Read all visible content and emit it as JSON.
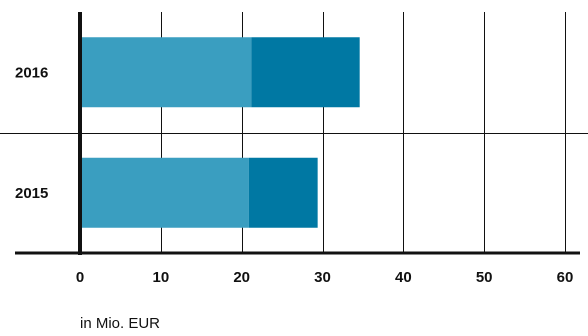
{
  "chart_data": {
    "type": "bar",
    "orientation": "horizontal",
    "stacked": true,
    "categories": [
      "2016",
      "2015"
    ],
    "series": [
      {
        "values": [
          21.2,
          20.9
        ],
        "color": "#3a9ec0"
      },
      {
        "values": [
          13.4,
          8.5
        ],
        "color": "#0078a3"
      }
    ],
    "x_ticks": [
      0,
      10,
      20,
      30,
      40,
      50,
      60
    ],
    "xlim": [
      0,
      60
    ],
    "xlabel": "in Mio. EUR",
    "grid": true
  }
}
